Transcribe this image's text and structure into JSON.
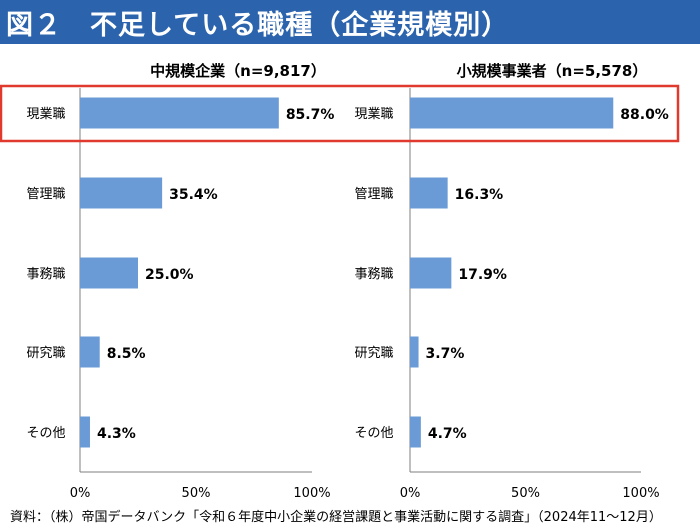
{
  "header": {
    "title": "図２　不足している職種（企業規模別）"
  },
  "source_note": "資料：（株）帝国データバンク「令和６年度中小企業の経営課題と事業活動に関する調査」（2024年11～12月）",
  "colors": {
    "title_bg": "#2b63ad",
    "bar": "#6a9bd6",
    "highlight": "#e03a2f",
    "axis": "#7f7f7f"
  },
  "chart_data": [
    {
      "type": "bar",
      "orientation": "horizontal",
      "title": "中規模企業（n=9,817）",
      "categories": [
        "現業職",
        "管理職",
        "事務職",
        "研究職",
        "その他"
      ],
      "values": [
        85.7,
        35.4,
        25.0,
        8.5,
        4.3
      ],
      "value_labels": [
        "85.7%",
        "35.4%",
        "25.0%",
        "8.5%",
        "4.3%"
      ],
      "xlim": [
        0,
        100
      ],
      "xticks": [
        "0%",
        "50%",
        "100%"
      ],
      "highlighted_category": "現業職"
    },
    {
      "type": "bar",
      "orientation": "horizontal",
      "title": "小規模事業者（n=5,578）",
      "categories": [
        "現業職",
        "管理職",
        "事務職",
        "研究職",
        "その他"
      ],
      "values": [
        88.0,
        16.3,
        17.9,
        3.7,
        4.7
      ],
      "value_labels": [
        "88.0%",
        "16.3%",
        "17.9%",
        "3.7%",
        "4.7%"
      ],
      "xlim": [
        0,
        100
      ],
      "xticks": [
        "0%",
        "50%",
        "100%"
      ],
      "highlighted_category": "現業職"
    }
  ]
}
